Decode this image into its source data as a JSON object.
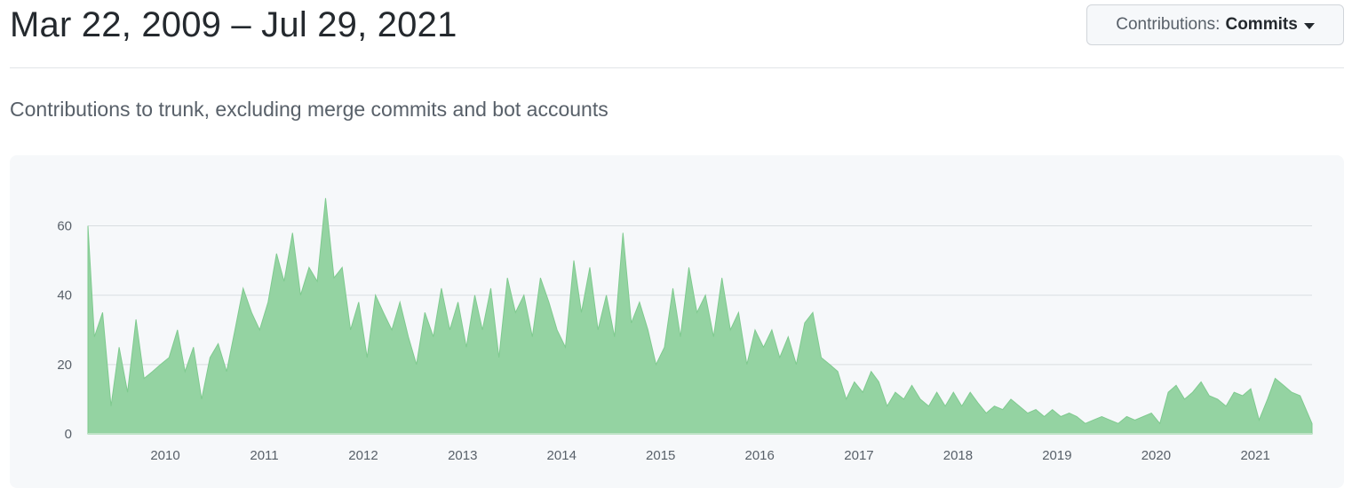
{
  "header": {
    "date_range": "Mar 22, 2009 – Jul 29, 2021",
    "dropdown_label": "Contributions:",
    "dropdown_value": "Commits"
  },
  "subtitle": "Contributions to trunk, excluding merge commits and bot accounts",
  "colors": {
    "area_fill": "#94d3a2",
    "area_stroke": "#7fca8f",
    "grid": "#d9dde1",
    "axis": "#bfe3c7"
  },
  "chart_data": {
    "type": "area",
    "title": "",
    "xlabel": "",
    "ylabel": "",
    "ylim": [
      0,
      65
    ],
    "grid": true,
    "y_ticks": [
      0,
      20,
      40,
      60
    ],
    "y_tick_labels": [
      "0",
      "20",
      "40",
      "60"
    ],
    "x_ticks": [
      "2010",
      "2011",
      "2012",
      "2013",
      "2014",
      "2015",
      "2016",
      "2017",
      "2018",
      "2019",
      "2020",
      "2021"
    ],
    "x_range": [
      "2009-03-22",
      "2021-07-29"
    ],
    "series": [
      {
        "name": "",
        "x": [
          "2009-03",
          "2009-04",
          "2009-05",
          "2009-06",
          "2009-07",
          "2009-08",
          "2009-09",
          "2009-10",
          "2009-11",
          "2009-12",
          "2010-01",
          "2010-02",
          "2010-03",
          "2010-04",
          "2010-05",
          "2010-06",
          "2010-07",
          "2010-08",
          "2010-09",
          "2010-10",
          "2010-11",
          "2010-12",
          "2011-01",
          "2011-02",
          "2011-03",
          "2011-04",
          "2011-05",
          "2011-06",
          "2011-07",
          "2011-08",
          "2011-09",
          "2011-10",
          "2011-11",
          "2011-12",
          "2012-01",
          "2012-02",
          "2012-03",
          "2012-04",
          "2012-05",
          "2012-06",
          "2012-07",
          "2012-08",
          "2012-09",
          "2012-10",
          "2012-11",
          "2012-12",
          "2013-01",
          "2013-02",
          "2013-03",
          "2013-04",
          "2013-05",
          "2013-06",
          "2013-07",
          "2013-08",
          "2013-09",
          "2013-10",
          "2013-11",
          "2013-12",
          "2014-01",
          "2014-02",
          "2014-03",
          "2014-04",
          "2014-05",
          "2014-06",
          "2014-07",
          "2014-08",
          "2014-09",
          "2014-10",
          "2014-11",
          "2014-12",
          "2015-01",
          "2015-02",
          "2015-03",
          "2015-04",
          "2015-05",
          "2015-06",
          "2015-07",
          "2015-08",
          "2015-09",
          "2015-10",
          "2015-11",
          "2015-12",
          "2016-01",
          "2016-02",
          "2016-03",
          "2016-04",
          "2016-05",
          "2016-06",
          "2016-07",
          "2016-08",
          "2016-09",
          "2016-10",
          "2016-11",
          "2016-12",
          "2017-01",
          "2017-02",
          "2017-03",
          "2017-04",
          "2017-05",
          "2017-06",
          "2017-07",
          "2017-08",
          "2017-09",
          "2017-10",
          "2017-11",
          "2017-12",
          "2018-01",
          "2018-02",
          "2018-03",
          "2018-04",
          "2018-05",
          "2018-06",
          "2018-07",
          "2018-08",
          "2018-09",
          "2018-10",
          "2018-11",
          "2018-12",
          "2019-01",
          "2019-02",
          "2019-03",
          "2019-04",
          "2019-05",
          "2019-06",
          "2019-07",
          "2019-08",
          "2019-09",
          "2019-10",
          "2019-11",
          "2019-12",
          "2020-01",
          "2020-02",
          "2020-03",
          "2020-04",
          "2020-05",
          "2020-06",
          "2020-07",
          "2020-08",
          "2020-09",
          "2020-10",
          "2020-11",
          "2020-12",
          "2021-01",
          "2021-02",
          "2021-03",
          "2021-04",
          "2021-05",
          "2021-06",
          "2021-07"
        ],
        "values": [
          60,
          28,
          35,
          8,
          25,
          12,
          33,
          16,
          18,
          20,
          22,
          30,
          18,
          25,
          10,
          22,
          26,
          18,
          30,
          42,
          35,
          30,
          38,
          52,
          44,
          58,
          40,
          48,
          44,
          68,
          45,
          48,
          30,
          38,
          22,
          40,
          35,
          30,
          38,
          28,
          20,
          35,
          28,
          42,
          30,
          38,
          25,
          40,
          30,
          42,
          22,
          45,
          35,
          40,
          28,
          45,
          38,
          30,
          25,
          50,
          35,
          48,
          30,
          40,
          28,
          58,
          32,
          38,
          30,
          20,
          25,
          42,
          28,
          48,
          35,
          40,
          28,
          45,
          30,
          35,
          20,
          30,
          25,
          30,
          22,
          28,
          20,
          32,
          35,
          22,
          20,
          18,
          10,
          15,
          12,
          18,
          15,
          8,
          12,
          10,
          14,
          10,
          8,
          12,
          8,
          12,
          8,
          12,
          9,
          6,
          8,
          7,
          10,
          8,
          6,
          7,
          5,
          7,
          5,
          6,
          5,
          3,
          4,
          5,
          4,
          3,
          5,
          4,
          5,
          6,
          3,
          12,
          14,
          10,
          12,
          15,
          11,
          10,
          8,
          12,
          11,
          13,
          4,
          10,
          16,
          14,
          12,
          11,
          3
        ]
      }
    ]
  }
}
